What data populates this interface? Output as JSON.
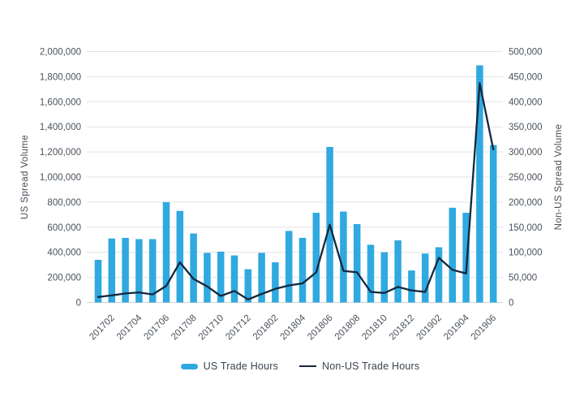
{
  "colors": {
    "bar": "#2FA9E0",
    "line": "#14273E",
    "grid": "#E0E3E6",
    "zero_line": "#CDD2D6",
    "tick_text": "#4A525B",
    "axis_title_text": "#434C55",
    "legend_text": "#3A434C",
    "background": "#FFFFFF"
  },
  "chart_data": {
    "type": "bar",
    "subtype": "combo-bar-line",
    "title": "",
    "grid": true,
    "legend_position": "bottom",
    "categories": [
      "201701",
      "201702",
      "201703",
      "201704",
      "201705",
      "201706",
      "201707",
      "201708",
      "201709",
      "201710",
      "201711",
      "201712",
      "201801",
      "201802",
      "201803",
      "201804",
      "201805",
      "201806",
      "201807",
      "201808",
      "201809",
      "201810",
      "201811",
      "201812",
      "201901",
      "201902",
      "201903",
      "201904",
      "201905",
      "201906"
    ],
    "x_axis": {
      "tick_labels": [
        "201702",
        "201704",
        "201706",
        "201708",
        "201710",
        "201712",
        "201802",
        "201804",
        "201806",
        "201808",
        "201810",
        "201812",
        "201902",
        "201904",
        "201906"
      ],
      "tick_start_index": 1,
      "tick_every": 2,
      "label_rotation_deg": -45
    },
    "left_axis": {
      "title": "US Spread Volume",
      "min": 0,
      "max": 2000000,
      "step": 200000,
      "tick_labels": [
        "0",
        "200,000",
        "400,000",
        "600,000",
        "800,000",
        "1,000,000",
        "1,200,000",
        "1,400,000",
        "1,600,000",
        "1,800,000",
        "2,000,000"
      ]
    },
    "right_axis": {
      "title": "Non-US Spread Volume",
      "min": 0,
      "max": 500000,
      "step": 50000,
      "tick_labels": [
        "0",
        "50,000",
        "100,000",
        "150,000",
        "200,000",
        "250,000",
        "300,000",
        "350,000",
        "400,000",
        "450,000",
        "500,000"
      ]
    },
    "series": [
      {
        "name": "US Trade Hours",
        "type": "bar",
        "axis": "left",
        "color": "#2FA9E0",
        "values": [
          340000,
          510000,
          515000,
          505000,
          505000,
          800000,
          730000,
          550000,
          395000,
          405000,
          375000,
          265000,
          395000,
          320000,
          570000,
          515000,
          715000,
          1240000,
          725000,
          625000,
          460000,
          400000,
          495000,
          255000,
          390000,
          440000,
          755000,
          715000,
          1890000,
          1255000
        ]
      },
      {
        "name": "Non-US Trade Hours",
        "type": "line",
        "axis": "right",
        "color": "#14273E",
        "values": [
          11000,
          14000,
          18000,
          20000,
          16000,
          33000,
          80000,
          47000,
          32000,
          13000,
          23000,
          6000,
          17000,
          27000,
          34000,
          38000,
          60000,
          155000,
          63000,
          60000,
          21000,
          19000,
          31000,
          24000,
          21000,
          89000,
          65000,
          58000,
          437000,
          305000
        ]
      }
    ]
  },
  "legend": {
    "items": [
      {
        "label": "US Trade Hours",
        "swatch": "bar-swatch"
      },
      {
        "label": "Non-US Trade Hours",
        "swatch": "line-swatch"
      }
    ]
  }
}
